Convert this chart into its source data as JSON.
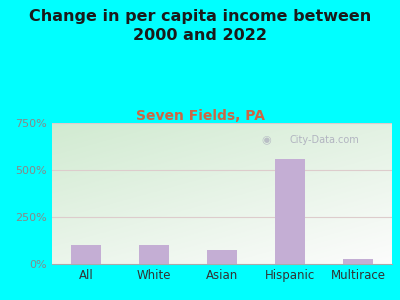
{
  "categories": [
    "All",
    "White",
    "Asian",
    "Hispanic",
    "Multirace"
  ],
  "values": [
    100,
    100,
    73,
    560,
    28
  ],
  "bar_color": "#c4aed4",
  "background_color": "#00FFFF",
  "plot_bg_color_topleft": "#d8eeda",
  "plot_bg_color_bottomright": "#f8f8f4",
  "title": "Change in per capita income between\n2000 and 2022",
  "subtitle": "Seven Fields, PA",
  "subtitle_color": "#cc6644",
  "title_color": "#1a1a1a",
  "title_fontsize": 11.5,
  "subtitle_fontsize": 10,
  "ylim": [
    0,
    750
  ],
  "yticks": [
    0,
    250,
    500,
    750
  ],
  "ytick_labels": [
    "0%",
    "250%",
    "500%",
    "750%"
  ],
  "ytick_color": "#888888",
  "grid_color": "#ddcccc",
  "watermark": "City-Data.com",
  "watermark_color": "#aaaabb"
}
